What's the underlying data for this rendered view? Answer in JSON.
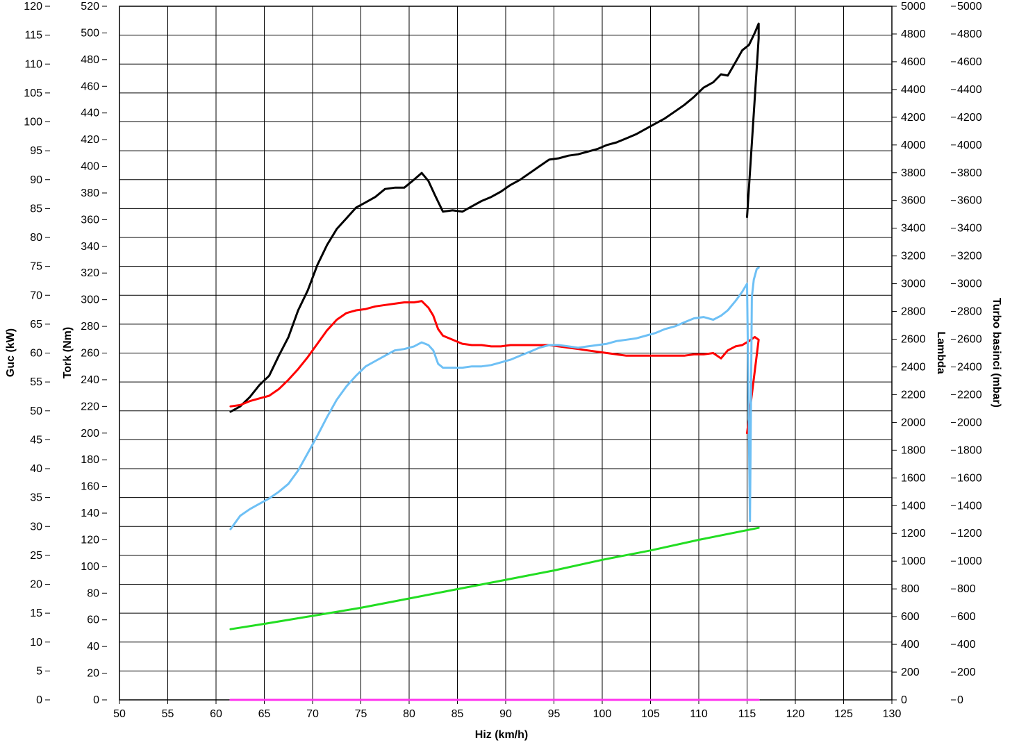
{
  "chart_data": {
    "type": "line",
    "title": "",
    "xlabel": "Hiz (km/h)",
    "xlim": [
      50,
      130
    ],
    "xticks": [
      50,
      55,
      60,
      65,
      70,
      75,
      80,
      85,
      90,
      95,
      100,
      105,
      110,
      115,
      120,
      125,
      130
    ],
    "grid": true,
    "y_axes": [
      {
        "key": "power",
        "label": "Guc (kW)",
        "color": "#000000",
        "range": [
          0,
          120
        ],
        "ticks": [
          0,
          5,
          10,
          15,
          20,
          25,
          30,
          35,
          40,
          45,
          50,
          55,
          60,
          65,
          70,
          75,
          80,
          85,
          90,
          95,
          100,
          105,
          110,
          115,
          120
        ],
        "side": "left"
      },
      {
        "key": "torque",
        "label": "Tork (Nm)",
        "color": "#ff0000",
        "range": [
          0,
          520
        ],
        "ticks": [
          0,
          20,
          40,
          60,
          80,
          100,
          120,
          140,
          160,
          180,
          200,
          220,
          240,
          260,
          280,
          300,
          320,
          340,
          360,
          380,
          400,
          420,
          440,
          460,
          480,
          500,
          520
        ],
        "side": "left"
      },
      {
        "key": "lambda",
        "label": "Lambda",
        "color": "#6a5acd",
        "range": [
          0,
          5000
        ],
        "ticks": [
          0,
          200,
          400,
          600,
          800,
          1000,
          1200,
          1400,
          1600,
          1800,
          2000,
          2200,
          2400,
          2600,
          2800,
          3000,
          3200,
          3400,
          3600,
          3800,
          4000,
          4200,
          4400,
          4600,
          4800,
          5000
        ],
        "side": "right"
      },
      {
        "key": "boost",
        "label": "Turbo basinci (mbar)",
        "color": "#ff00ff",
        "range": [
          0,
          5000
        ],
        "ticks": [
          0,
          200,
          400,
          600,
          800,
          1000,
          1200,
          1400,
          1600,
          1800,
          2000,
          2200,
          2400,
          2600,
          2800,
          3000,
          3200,
          3400,
          3600,
          3800,
          4000,
          4200,
          4400,
          4600,
          4800,
          5000
        ],
        "side": "right"
      }
    ],
    "series": [
      {
        "color": "#000000",
        "axis": "torque",
        "x": [
          61.5,
          62.5,
          63.5,
          64.5,
          65.5,
          66.5,
          67.5,
          68.5,
          69.5,
          70.5,
          71.5,
          72.5,
          73.5,
          74.5,
          75.5,
          76.5,
          77.5,
          78.5,
          79.5,
          80.5,
          81.3,
          82.0,
          82.7,
          83.5,
          84.5,
          85.5,
          86.5,
          87.5,
          88.5,
          89.5,
          90.5,
          91.5,
          92.5,
          93.5,
          94.5,
          95.5,
          96.5,
          97.5,
          98.5,
          99.5,
          100.5,
          101.5,
          102.5,
          103.5,
          104.5,
          105.5,
          106.5,
          107.5,
          108.5,
          109.5,
          110.5,
          111.5,
          112.3,
          113.0,
          113.8,
          114.5,
          115.2,
          115.8,
          116.2,
          116.2,
          115.0
        ],
        "values": [
          216,
          220,
          227,
          236,
          243,
          258,
          272,
          292,
          307,
          326,
          341,
          353,
          361,
          369,
          373,
          377,
          383,
          384,
          384,
          390,
          395,
          389,
          378,
          366,
          367,
          366,
          370,
          374,
          377,
          381,
          386,
          390,
          395,
          400,
          405,
          406,
          408,
          409,
          411,
          413,
          416,
          418,
          421,
          424,
          428,
          432,
          436,
          441,
          446,
          452,
          459,
          463,
          469,
          468,
          478,
          487,
          491,
          500,
          507,
          496,
          362
        ]
      },
      {
        "color": "#ff0000",
        "axis": "torque",
        "x": [
          61.5,
          62.5,
          63.5,
          64.5,
          65.5,
          66.5,
          67.5,
          68.5,
          69.5,
          70.5,
          71.5,
          72.5,
          73.5,
          74.5,
          75.5,
          76.5,
          77.5,
          78.5,
          79.5,
          80.5,
          81.3,
          82.0,
          82.5,
          83.0,
          83.5,
          84.5,
          85.5,
          86.5,
          87.5,
          88.5,
          89.5,
          90.5,
          91.5,
          92.5,
          93.5,
          94.5,
          95.5,
          96.5,
          97.5,
          98.5,
          99.5,
          100.5,
          101.5,
          102.5,
          103.5,
          104.5,
          105.5,
          106.5,
          107.5,
          108.5,
          109.5,
          110.5,
          111.5,
          112.3,
          113.0,
          113.8,
          114.5,
          115.2,
          115.8,
          116.2,
          115.0
        ],
        "values": [
          220,
          221,
          224,
          226,
          228,
          233,
          240,
          248,
          257,
          267,
          277,
          285,
          290,
          292,
          293,
          295,
          296,
          297,
          298,
          298,
          299,
          294,
          288,
          278,
          273,
          270,
          267,
          266,
          266,
          265,
          265,
          266,
          266,
          266,
          266,
          266,
          265,
          264,
          263,
          262,
          261,
          260,
          259,
          258,
          258,
          258,
          258,
          258,
          258,
          258,
          259,
          259,
          260,
          256,
          262,
          265,
          266,
          269,
          272,
          270,
          200
        ]
      },
      {
        "color": "#6ec0f5",
        "axis": "torque",
        "x": [
          61.5,
          62.5,
          63.5,
          64.5,
          65.5,
          66.5,
          67.5,
          68.5,
          69.5,
          70.5,
          71.5,
          72.5,
          73.5,
          74.5,
          75.5,
          76.5,
          77.5,
          78.5,
          79.5,
          80.5,
          81.3,
          82.0,
          82.5,
          83.0,
          83.5,
          84.5,
          85.5,
          86.5,
          87.5,
          88.5,
          89.5,
          90.5,
          91.5,
          92.5,
          93.5,
          94.5,
          95.5,
          96.5,
          97.5,
          98.5,
          99.5,
          100.5,
          101.5,
          102.5,
          103.5,
          104.5,
          105.5,
          106.5,
          107.5,
          108.5,
          109.5,
          110.5,
          111.5,
          112.3,
          113.0,
          113.8,
          114.5,
          115.0,
          115.3,
          115.5,
          115.7,
          116.0,
          116.2
        ],
        "values": [
          128,
          138,
          143,
          147,
          151,
          156,
          162,
          172,
          185,
          198,
          212,
          225,
          235,
          243,
          250,
          254,
          258,
          262,
          263,
          265,
          268,
          266,
          262,
          252,
          249,
          249,
          249,
          250,
          250,
          251,
          253,
          255,
          258,
          261,
          264,
          266,
          266,
          265,
          264,
          265,
          266,
          267,
          269,
          270,
          271,
          273,
          275,
          278,
          280,
          283,
          286,
          287,
          285,
          288,
          292,
          299,
          306,
          312,
          134,
          302,
          315,
          323,
          324
        ]
      },
      {
        "color": "#22dd22",
        "axis": "torque",
        "x": [
          61.5,
          65,
          70,
          75,
          80,
          85,
          90,
          95,
          100,
          105,
          110,
          116.2
        ],
        "values": [
          53,
          57,
          63,
          69,
          76,
          83,
          90,
          97,
          105,
          112,
          120,
          129
        ]
      },
      {
        "color": "#ff33ee",
        "axis": "torque",
        "x": [
          61.5,
          116.2
        ],
        "values": [
          0,
          0
        ]
      }
    ]
  }
}
